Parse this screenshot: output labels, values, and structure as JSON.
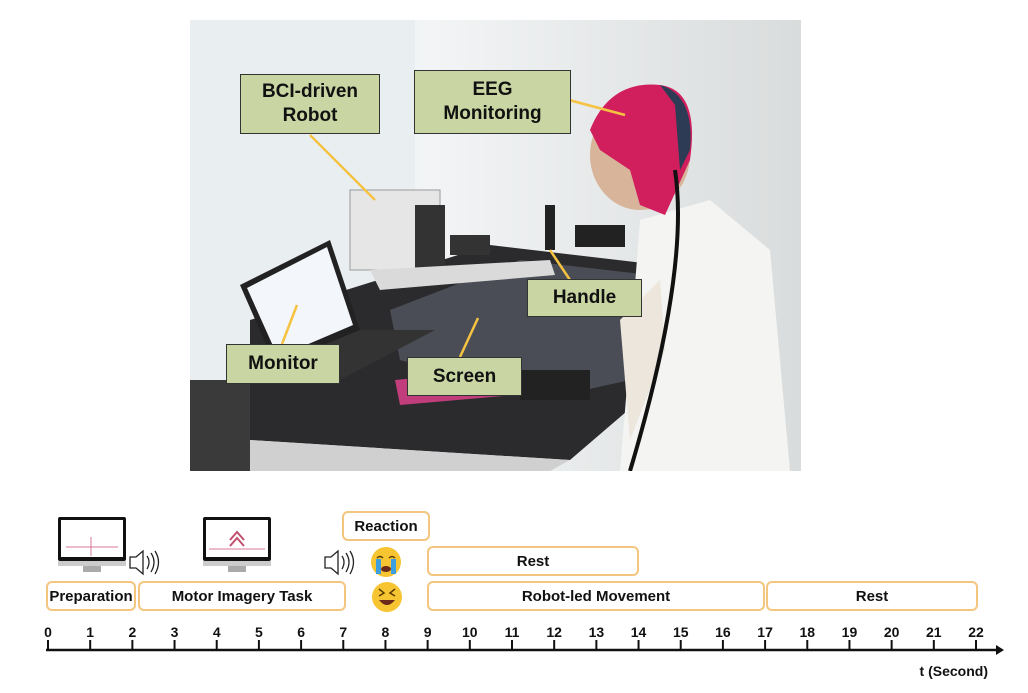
{
  "photo_labels": {
    "robot": "BCI-driven Robot",
    "eeg": "EEG Monitoring",
    "handle": "Handle",
    "monitor": "Monitor",
    "screen": "Screen"
  },
  "timeline": {
    "phases": {
      "preparation": "Preparation",
      "motor_imagery": "Motor Imagery Task",
      "reaction": "Reaction",
      "rest_upper": "Rest",
      "robot_movement": "Robot-led Movement",
      "rest_final": "Rest"
    },
    "axis_ticks": [
      "0",
      "1",
      "2",
      "3",
      "4",
      "5",
      "6",
      "7",
      "8",
      "9",
      "10",
      "11",
      "12",
      "13",
      "14",
      "15",
      "16",
      "17",
      "18",
      "19",
      "20",
      "21",
      "22"
    ],
    "axis_label": "t (Second)",
    "icons": [
      "monitor-crosshair-icon",
      "speaker-icon",
      "monitor-arrow-icon",
      "speaker-icon",
      "crying-emoji-icon",
      "laughing-emoji-icon"
    ]
  },
  "colors": {
    "label_fill": "#c9d5a2",
    "leader_line": "#f5c242",
    "phase_border": "#f3c57e"
  }
}
